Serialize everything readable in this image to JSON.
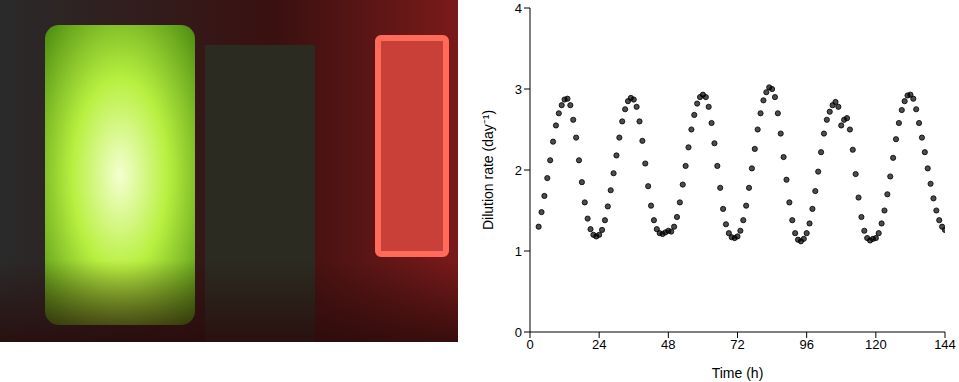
{
  "chart_data": {
    "type": "scatter",
    "x_label": "Time (h)",
    "y_label": "Dilution rate (day⁻¹)",
    "xlim": [
      0,
      144
    ],
    "xticks": [
      0,
      24,
      48,
      72,
      96,
      120,
      144
    ],
    "ylim": [
      0,
      4
    ],
    "yticks": [
      0,
      1,
      2,
      3,
      4
    ],
    "grid": false,
    "marker": "circle",
    "color": "#000000",
    "x": [
      3,
      4,
      5,
      6,
      7,
      8,
      9,
      10,
      11,
      12,
      13,
      14,
      15,
      16,
      17,
      18,
      19,
      20,
      21,
      22,
      23,
      24,
      25,
      26,
      27,
      28,
      29,
      30,
      31,
      32,
      33,
      34,
      35,
      36,
      37,
      38,
      39,
      40,
      41,
      42,
      43,
      44,
      45,
      46,
      47,
      48,
      49,
      50,
      51,
      52,
      53,
      54,
      55,
      56,
      57,
      58,
      59,
      60,
      61,
      62,
      63,
      64,
      65,
      66,
      67,
      68,
      69,
      70,
      71,
      72,
      73,
      74,
      75,
      76,
      77,
      78,
      79,
      80,
      81,
      82,
      83,
      84,
      85,
      86,
      87,
      88,
      89,
      90,
      91,
      92,
      93,
      94,
      95,
      96,
      97,
      98,
      99,
      100,
      101,
      102,
      103,
      104,
      105,
      106,
      107,
      108,
      109,
      110,
      111,
      112,
      113,
      114,
      115,
      116,
      117,
      118,
      119,
      120,
      121,
      122,
      123,
      124,
      125,
      126,
      127,
      128,
      129,
      130,
      131,
      132,
      133,
      134,
      135,
      136,
      137,
      138,
      139,
      140,
      141,
      142,
      143,
      144
    ],
    "values": [
      1.3,
      1.48,
      1.68,
      1.9,
      2.12,
      2.35,
      2.55,
      2.7,
      2.8,
      2.87,
      2.88,
      2.8,
      2.62,
      2.4,
      2.12,
      1.85,
      1.6,
      1.4,
      1.27,
      1.2,
      1.18,
      1.2,
      1.26,
      1.38,
      1.55,
      1.75,
      1.96,
      2.18,
      2.4,
      2.6,
      2.75,
      2.85,
      2.89,
      2.87,
      2.78,
      2.6,
      2.36,
      2.08,
      1.8,
      1.56,
      1.38,
      1.27,
      1.22,
      1.21,
      1.23,
      1.25,
      1.24,
      1.3,
      1.42,
      1.6,
      1.82,
      2.05,
      2.28,
      2.5,
      2.68,
      2.82,
      2.9,
      2.93,
      2.9,
      2.78,
      2.58,
      2.33,
      2.05,
      1.78,
      1.52,
      1.33,
      1.22,
      1.17,
      1.16,
      1.18,
      1.25,
      1.38,
      1.56,
      1.78,
      2.02,
      2.26,
      2.5,
      2.7,
      2.86,
      2.96,
      3.02,
      3.0,
      2.9,
      2.7,
      2.45,
      2.16,
      1.88,
      1.6,
      1.38,
      1.22,
      1.14,
      1.12,
      1.15,
      1.22,
      1.34,
      1.52,
      1.74,
      1.98,
      2.22,
      2.45,
      2.62,
      2.72,
      2.8,
      2.84,
      2.78,
      2.55,
      2.62,
      2.64,
      2.5,
      2.25,
      1.95,
      1.66,
      1.42,
      1.25,
      1.16,
      1.13,
      1.15,
      1.16,
      1.22,
      1.34,
      1.5,
      1.7,
      1.92,
      2.15,
      2.38,
      2.58,
      2.74,
      2.85,
      2.92,
      2.93,
      2.88,
      2.75,
      2.58,
      2.4,
      2.22,
      2.02,
      1.83,
      1.65,
      1.5,
      1.38,
      1.3,
      1.26
    ]
  }
}
